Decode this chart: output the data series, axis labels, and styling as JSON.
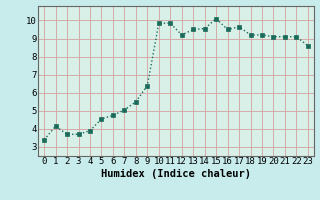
{
  "x": [
    0,
    1,
    2,
    3,
    4,
    5,
    6,
    7,
    8,
    9,
    10,
    11,
    12,
    13,
    14,
    15,
    16,
    17,
    18,
    19,
    20,
    21,
    22,
    23
  ],
  "y": [
    3.4,
    4.15,
    3.7,
    3.7,
    3.9,
    4.55,
    4.75,
    5.05,
    5.5,
    6.4,
    9.85,
    9.85,
    9.2,
    9.5,
    9.55,
    10.1,
    9.5,
    9.65,
    9.2,
    9.2,
    9.1,
    9.1,
    9.1,
    8.6
  ],
  "line_color": "#1a6b5a",
  "marker": "s",
  "markersize": 2.5,
  "linewidth": 1.0,
  "xlabel": "Humidex (Indice chaleur)",
  "xlim": [
    -0.5,
    23.5
  ],
  "ylim": [
    2.5,
    10.8
  ],
  "yticks": [
    3,
    4,
    5,
    6,
    7,
    8,
    9,
    10
  ],
  "xticks": [
    0,
    1,
    2,
    3,
    4,
    5,
    6,
    7,
    8,
    9,
    10,
    11,
    12,
    13,
    14,
    15,
    16,
    17,
    18,
    19,
    20,
    21,
    22,
    23
  ],
  "bg_color": "#c8ecec",
  "plot_bg_color": "#d8f0e8",
  "grid_color": "#d4a0a0",
  "spine_color": "#666666",
  "xlabel_fontsize": 7.5,
  "tick_fontsize": 6.5
}
